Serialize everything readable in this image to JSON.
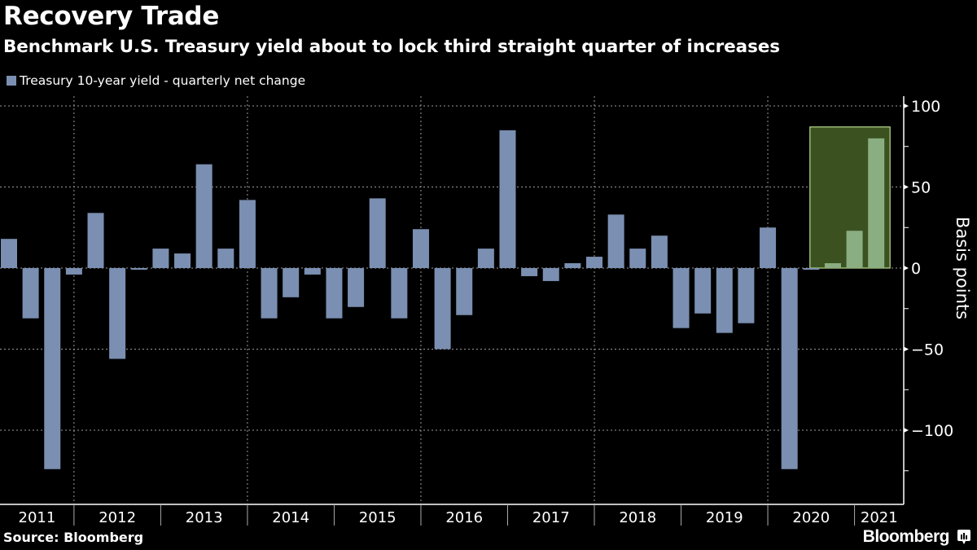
{
  "header": {
    "title": "Recovery Trade",
    "subtitle": "Benchmark U.S. Treasury yield about to lock third straight quarter of increases"
  },
  "footer": {
    "source": "Source: Bloomberg",
    "brand": "Bloomberg",
    "brand_icon": "bar-chart-speech-bubble-icon"
  },
  "colors": {
    "background": "#000000",
    "bar": "#7a8fb1",
    "highlight_bar": "#8aae82",
    "highlight_fill": "#3b5220",
    "highlight_border": "#b8d98d",
    "gridline": "#9a9a9a",
    "axis": "#ffffff"
  },
  "chart_data": {
    "type": "bar",
    "title": "Recovery Trade",
    "subtitle": "Benchmark U.S. Treasury yield about to lock third straight quarter of increases",
    "xlabel": "",
    "ylabel": "Basis points",
    "ylim": [
      -146,
      105
    ],
    "yticks": [
      100,
      50,
      0,
      -50,
      -100
    ],
    "ytick_labels": [
      "100",
      "50",
      "0",
      "-50",
      "-100"
    ],
    "y_axis_position": "right",
    "grid": true,
    "legend": {
      "placement": "top-left",
      "entries": [
        "Treasury 10-year yield - quarterly net change"
      ]
    },
    "year_labels": [
      "2011",
      "2012",
      "2013",
      "2014",
      "2015",
      "2016",
      "2017",
      "2018",
      "2019",
      "2020",
      "2021"
    ],
    "categories": [
      "2011 Q1",
      "2011 Q2",
      "2011 Q3",
      "2011 Q4",
      "2012 Q1",
      "2012 Q2",
      "2012 Q3",
      "2012 Q4",
      "2013 Q1",
      "2013 Q2",
      "2013 Q3",
      "2013 Q4",
      "2014 Q1",
      "2014 Q2",
      "2014 Q3",
      "2014 Q4",
      "2015 Q1",
      "2015 Q2",
      "2015 Q3",
      "2015 Q4",
      "2016 Q1",
      "2016 Q2",
      "2016 Q3",
      "2016 Q4",
      "2017 Q1",
      "2017 Q2",
      "2017 Q3",
      "2017 Q4",
      "2018 Q1",
      "2018 Q2",
      "2018 Q3",
      "2018 Q4",
      "2019 Q1",
      "2019 Q2",
      "2019 Q3",
      "2019 Q4",
      "2020 Q1",
      "2020 Q2",
      "2020 Q3",
      "2020 Q4",
      "2021 Q1"
    ],
    "series": [
      {
        "name": "Treasury 10-year yield - quarterly net change",
        "values": [
          18,
          -31,
          -124,
          -4,
          34,
          -56,
          -1,
          12,
          9,
          64,
          12,
          42,
          -31,
          -18,
          -4,
          -31,
          -24,
          43,
          -31,
          24,
          -50,
          -29,
          12,
          85,
          -5,
          -8,
          3,
          7,
          33,
          12,
          20,
          -37,
          -28,
          -40,
          -34,
          25,
          -124,
          -1,
          3,
          23,
          80
        ]
      }
    ],
    "highlight": {
      "from_category": "2020 Q2",
      "to_category": "2021 Q1",
      "label": "third straight quarter of increases"
    }
  }
}
